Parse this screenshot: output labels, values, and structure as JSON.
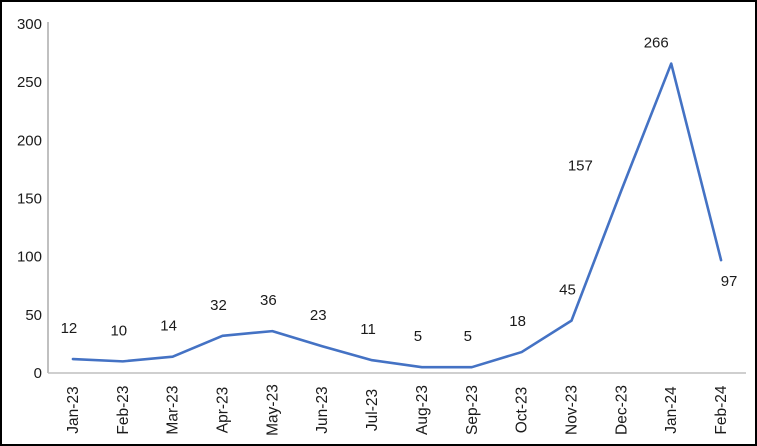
{
  "chart_data": {
    "type": "line",
    "title": "",
    "xlabel": "",
    "ylabel": "",
    "categories": [
      "Jan-23",
      "Feb-23",
      "Mar-23",
      "Apr-23",
      "May-23",
      "Jun-23",
      "Jul-23",
      "Aug-23",
      "Sep-23",
      "Oct-23",
      "Nov-23",
      "Dec-23",
      "Jan-24",
      "Feb-24"
    ],
    "series": [
      {
        "name": "",
        "values": [
          12,
          10,
          14,
          32,
          36,
          23,
          11,
          5,
          5,
          18,
          45,
          157,
          266,
          97
        ]
      }
    ],
    "data_labels_shown": true,
    "ylim": [
      0,
      300
    ],
    "yticks": [
      0,
      50,
      100,
      150,
      200,
      250,
      300
    ],
    "grid": false,
    "legend_position": "none",
    "colors": {
      "line": "#4472C4",
      "y_axis_line": "#A6A6A6",
      "x_axis_line": "#BFBFBF",
      "text": "#1A1A1A",
      "frame_border": "#000000",
      "background": "#FFFFFF"
    }
  }
}
